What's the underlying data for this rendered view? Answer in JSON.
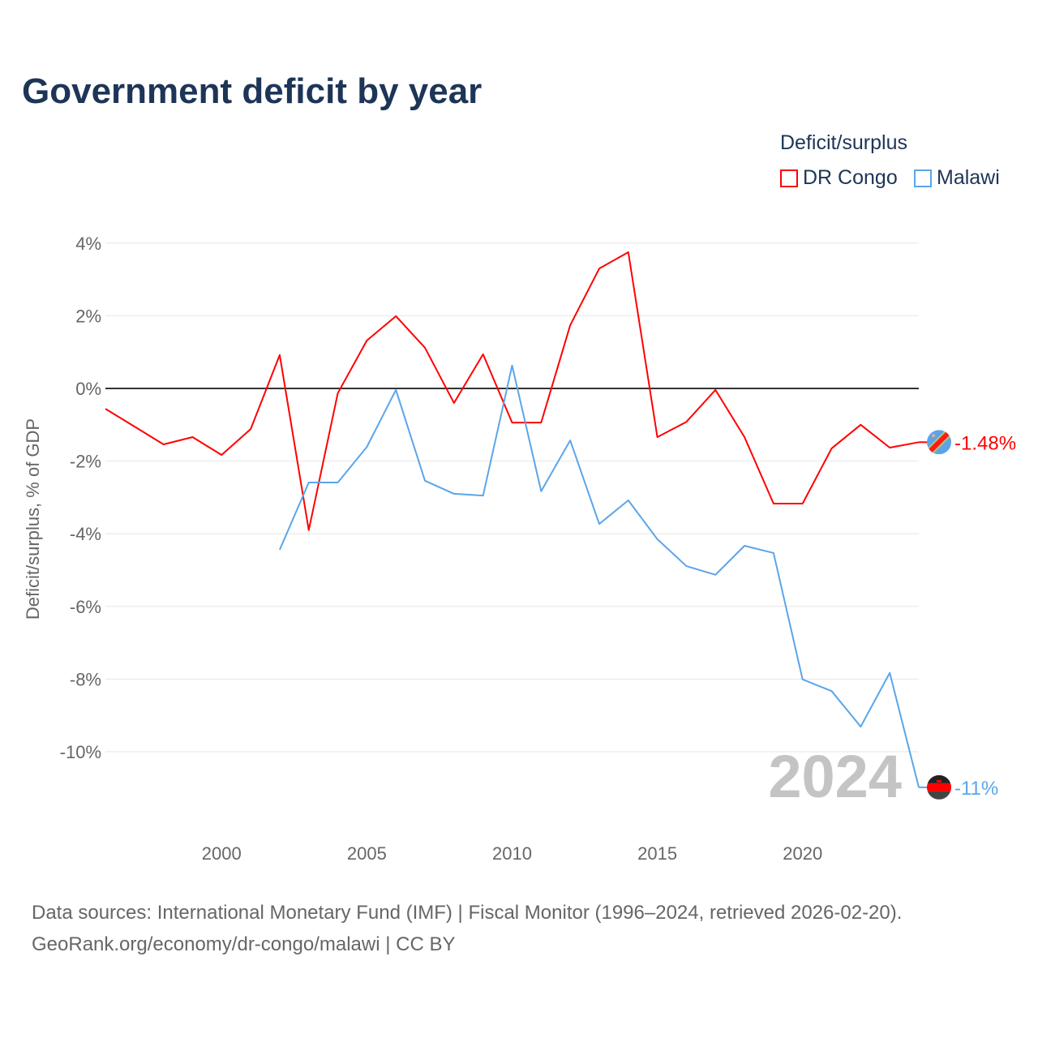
{
  "title": "Government deficit by year",
  "legend": {
    "title": "Deficit/surplus",
    "items": [
      {
        "name": "DR Congo",
        "color": "#ff0000"
      },
      {
        "name": "Malawi",
        "color": "#5aa5ea"
      }
    ]
  },
  "source": {
    "line1": "Data sources: International Monetary Fund (IMF) | Fiscal Monitor (1996–2024, retrieved 2026-02-20).",
    "line2": "GeoRank.org/economy/dr-congo/malawi | CC BY"
  },
  "chart_data": {
    "type": "line",
    "title": "Government deficit by year",
    "xlabel": "",
    "ylabel": "Deficit/surplus, % of GDP",
    "xlim": [
      1996,
      2024
    ],
    "ylim": [
      -12,
      4.5
    ],
    "x_ticks": [
      2000,
      2005,
      2010,
      2015,
      2020
    ],
    "y_ticks": [
      4,
      2,
      0,
      -2,
      -4,
      -6,
      -8,
      -10
    ],
    "y_tick_labels": [
      "4%",
      "2%",
      "0%",
      "-2%",
      "-4%",
      "-6%",
      "-8%",
      "-10%"
    ],
    "year_watermark": "2024",
    "series": [
      {
        "name": "DR Congo",
        "color": "#ff0000",
        "end_label": "-1.48%",
        "x": [
          1996,
          1997,
          1998,
          1999,
          2000,
          2001,
          2002,
          2003,
          2004,
          2005,
          2006,
          2007,
          2008,
          2009,
          2010,
          2011,
          2012,
          2013,
          2014,
          2015,
          2016,
          2017,
          2018,
          2019,
          2020,
          2021,
          2022,
          2023,
          2024
        ],
        "y": [
          -0.56,
          -1.05,
          -1.54,
          -1.34,
          -1.83,
          -1.12,
          0.92,
          -3.9,
          -0.13,
          1.32,
          1.99,
          1.12,
          -0.4,
          0.94,
          -0.94,
          -0.94,
          1.74,
          3.3,
          3.75,
          -1.34,
          -0.92,
          -0.04,
          -1.34,
          -3.17,
          -3.17,
          -1.65,
          -1.0,
          -1.63,
          -1.48
        ]
      },
      {
        "name": "Malawi",
        "color": "#5aa5ea",
        "end_label": "-11%",
        "x": [
          2002,
          2003,
          2004,
          2005,
          2006,
          2007,
          2008,
          2009,
          2010,
          2011,
          2012,
          2013,
          2014,
          2015,
          2016,
          2017,
          2018,
          2019,
          2020,
          2021,
          2022,
          2023,
          2024
        ],
        "y": [
          -4.44,
          -2.59,
          -2.59,
          -1.61,
          -0.04,
          -2.54,
          -2.9,
          -2.95,
          0.63,
          -2.83,
          -1.43,
          -3.73,
          -3.08,
          -4.15,
          -4.89,
          -5.13,
          -4.33,
          -4.53,
          -8.01,
          -8.33,
          -9.31,
          -7.83,
          -10.98
        ]
      }
    ]
  }
}
